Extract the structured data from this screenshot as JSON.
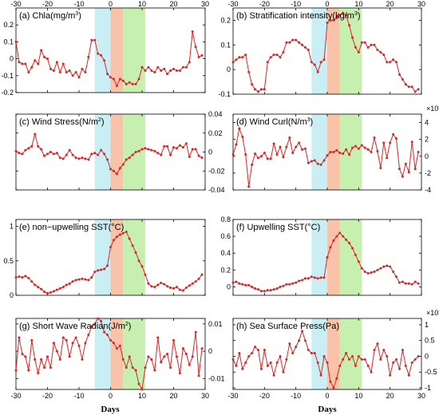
{
  "figure": {
    "xlabel_left": "Days",
    "xlabel_right": "Days",
    "x_ticks": [
      "-30",
      "-20",
      "-10",
      "0",
      "10",
      "20",
      "30"
    ],
    "line_color": "#d62728",
    "shade_colors": [
      "#c9eef4",
      "#f8c3a8",
      "#c7efb0"
    ]
  },
  "chart_data": [
    {
      "type": "line",
      "title_main": "(a) Chla(mg/m",
      "title_sup": "3",
      "title_end": ")",
      "xlim": [
        -30,
        30
      ],
      "ylim": [
        -0.2,
        0.3
      ],
      "yticks": [
        -0.2,
        -0.1,
        0,
        0.1,
        0.2
      ],
      "ytick_labels": [
        "-0.2",
        "-0.1",
        "0",
        "0.1",
        "0.2"
      ],
      "yaxis_side": "left",
      "x_top_labels": true,
      "shaded_intervals": [
        [
          -5,
          0
        ],
        [
          0,
          4
        ],
        [
          4,
          11
        ]
      ],
      "x": [
        -30,
        -29,
        -28,
        -27,
        -26,
        -25,
        -24,
        -23,
        -22,
        -21,
        -20,
        -19,
        -18,
        -17,
        -16,
        -15,
        -14,
        -13,
        -12,
        -11,
        -10,
        -9,
        -8,
        -7,
        -6,
        -5,
        -4,
        -3,
        -2,
        -1,
        0,
        1,
        2,
        3,
        4,
        5,
        6,
        7,
        8,
        9,
        10,
        11,
        12,
        13,
        14,
        15,
        16,
        17,
        18,
        19,
        20,
        21,
        22,
        23,
        24,
        25,
        26,
        27,
        28,
        29
      ],
      "values": [
        0.1,
        -0.02,
        -0.03,
        -0.03,
        -0.08,
        -0.05,
        -0.01,
        -0.03,
        0.05,
        0.01,
        0,
        -0.06,
        -0.07,
        -0.02,
        -0.08,
        -0.03,
        -0.08,
        -0.07,
        -0.1,
        -0.08,
        -0.11,
        -0.06,
        -0.08,
        0.01,
        0.11,
        0.11,
        0.03,
        0.02,
        -0.01,
        -0.09,
        -0.11,
        -0.12,
        -0.16,
        -0.12,
        -0.13,
        -0.15,
        -0.14,
        -0.15,
        -0.15,
        -0.12,
        -0.05,
        -0.07,
        -0.05,
        -0.07,
        -0.08,
        -0.05,
        -0.07,
        -0.06,
        -0.09,
        -0.07,
        -0.06,
        -0.07,
        -0.07,
        -0.05,
        -0.05,
        -0.02,
        0.16,
        0.07,
        0.01,
        0.02
      ]
    },
    {
      "type": "line",
      "title_main": "(b) Stratification intensity(kg/m",
      "title_sup": "3",
      "title_end": ")",
      "xlim": [
        -30,
        30
      ],
      "ylim": [
        -0.1,
        0.25
      ],
      "yticks": [
        -0.1,
        0,
        0.1,
        0.2
      ],
      "ytick_labels": [
        "-0.1",
        "0",
        "0.1",
        "0.2"
      ],
      "yaxis_side": "left",
      "x_top_labels": true,
      "shaded_intervals": [
        [
          -5,
          0
        ],
        [
          0,
          4
        ],
        [
          4,
          11
        ]
      ],
      "x": [
        -30,
        -29,
        -28,
        -27,
        -26,
        -25,
        -24,
        -23,
        -22,
        -21,
        -20,
        -19,
        -18,
        -17,
        -16,
        -15,
        -14,
        -13,
        -12,
        -11,
        -10,
        -9,
        -8,
        -7,
        -6,
        -5,
        -4,
        -3,
        -2,
        -1,
        0,
        1,
        2,
        3,
        4,
        5,
        6,
        7,
        8,
        9,
        10,
        11,
        12,
        13,
        14,
        15,
        16,
        17,
        18,
        19,
        20,
        21,
        22,
        23,
        24,
        25,
        26,
        27,
        28,
        29
      ],
      "values": [
        0.03,
        0.04,
        0.05,
        0.05,
        0.06,
        -0.01,
        -0.06,
        -0.08,
        -0.09,
        -0.08,
        -0.08,
        0.03,
        0.05,
        0.06,
        0.06,
        0.05,
        0.07,
        0.11,
        0.11,
        0.12,
        0.12,
        0.11,
        0.1,
        0.09,
        0.08,
        0.03,
        0.02,
        -0.01,
        0.03,
        0.04,
        0.19,
        0.2,
        0.2,
        0.21,
        0.22,
        0.23,
        0.22,
        0.18,
        0.13,
        0.09,
        0.07,
        0.11,
        0.11,
        0.09,
        0.1,
        0.1,
        0.08,
        0.07,
        0.06,
        0.03,
        0.03,
        0.04,
        0.03,
        -0.02,
        -0.04,
        -0.06,
        -0.07,
        -0.07,
        -0.09,
        -0.08
      ]
    },
    {
      "type": "line",
      "title_main": "(c) Wind Stress(N/m",
      "title_sup": "2",
      "title_end": ")",
      "xlim": [
        -30,
        30
      ],
      "ylim": [
        -0.04,
        0.04
      ],
      "yticks": [
        -0.04,
        -0.02,
        0,
        0.02,
        0.04
      ],
      "ytick_labels": [
        "-0.04",
        "-0.02",
        "0",
        "0.02",
        "0.04"
      ],
      "yaxis_side": "right",
      "x_top_labels": false,
      "shaded_intervals": [
        [
          -5,
          0
        ],
        [
          0,
          4
        ],
        [
          4,
          11
        ]
      ],
      "x": [
        -30,
        -29,
        -28,
        -27,
        -26,
        -25,
        -24,
        -23,
        -22,
        -21,
        -20,
        -19,
        -18,
        -17,
        -16,
        -15,
        -14,
        -13,
        -12,
        -11,
        -10,
        -9,
        -8,
        -7,
        -6,
        -5,
        -4,
        -3,
        -2,
        -1,
        0,
        1,
        2,
        3,
        4,
        5,
        6,
        7,
        8,
        9,
        10,
        11,
        12,
        13,
        14,
        15,
        16,
        17,
        18,
        19,
        20,
        21,
        22,
        23,
        24,
        25,
        26,
        27,
        28,
        29
      ],
      "values": [
        0.001,
        -0.001,
        -0.002,
        0.002,
        0.004,
        0.006,
        0.019,
        0.006,
        0.003,
        -0.004,
        -0.002,
        0,
        -0.002,
        -0.001,
        -0.006,
        -0.007,
        -0.003,
        0.002,
        -0.003,
        -0.006,
        -0.007,
        -0.006,
        -0.007,
        -0.008,
        -0.002,
        -0.001,
        -0.003,
        0.002,
        -0.002,
        -0.008,
        -0.018,
        -0.02,
        -0.023,
        -0.017,
        -0.013,
        -0.008,
        -0.006,
        -0.003,
        0,
        0.001,
        0.003,
        0.004,
        0.003,
        0.002,
        0.001,
        -0.001,
        -0.003,
        0.006,
        0.006,
        -0.003,
        0.005,
        0.004,
        0.007,
        0.005,
        0.009,
        -0.005,
        0.003,
        0.003,
        -0.004,
        -0.006
      ]
    },
    {
      "type": "line",
      "title_main": "(d) Wind Curl(N/m",
      "title_sup": "3",
      "title_end": ")",
      "xlim": [
        -30,
        30
      ],
      "ylim": [
        -4,
        5
      ],
      "yticks": [
        -4,
        -2,
        0,
        2,
        4
      ],
      "ytick_labels": [
        "-4",
        "-2",
        "0",
        "2",
        "4"
      ],
      "yaxis_side": "right",
      "x_top_labels": false,
      "exponent_label": "×10",
      "exponent_value": "-7",
      "shaded_intervals": [
        [
          -5,
          0
        ],
        [
          0,
          4
        ],
        [
          4,
          11
        ]
      ],
      "x": [
        -30,
        -29,
        -28,
        -27,
        -26,
        -25,
        -24,
        -23,
        -22,
        -21,
        -20,
        -19,
        -18,
        -17,
        -16,
        -15,
        -14,
        -13,
        -12,
        -11,
        -10,
        -9,
        -8,
        -7,
        -6,
        -5,
        -4,
        -3,
        -2,
        -1,
        0,
        1,
        2,
        3,
        4,
        5,
        6,
        7,
        8,
        9,
        10,
        11,
        12,
        13,
        14,
        15,
        16,
        17,
        18,
        19,
        20,
        21,
        22,
        23,
        24,
        25,
        26,
        27,
        28,
        29
      ],
      "values": [
        0.2,
        1.4,
        3.3,
        2.3,
        0.2,
        -3.6,
        -1,
        0.3,
        -0.2,
        0,
        0.4,
        -0.3,
        -0.3,
        1.5,
        0.2,
        1.1,
        -0.1,
        1.1,
        2.2,
        0.4,
        1.1,
        1.6,
        0.8,
        0.9,
        -0.8,
        -0.6,
        -0.5,
        -0.9,
        -1,
        -0.5,
        0.1,
        0.5,
        0.5,
        0.7,
        0.4,
        0.3,
        0.8,
        0.2,
        1,
        1.2,
        0.9,
        1.3,
        1,
        0.8,
        0.5,
        2.2,
        0.6,
        -1.4,
        1.6,
        -0.2,
        1.6,
        2.6,
        2.1,
        -1.5,
        -2.4,
        -0.9,
        -1.9,
        1.7,
        -1.5,
        0.5
      ]
    },
    {
      "type": "line",
      "title_main": "(e) non−upwelling SST(°C)",
      "title_sup": "",
      "title_end": "",
      "xlim": [
        -30,
        30
      ],
      "ylim": [
        0,
        1.1
      ],
      "yticks": [
        0,
        0.5,
        1
      ],
      "ytick_labels": [
        "0",
        "0.5",
        "1"
      ],
      "yaxis_side": "left",
      "x_top_labels": false,
      "shaded_intervals": [
        [
          -5,
          0
        ],
        [
          0,
          4
        ],
        [
          4,
          11
        ]
      ],
      "x": [
        -30,
        -29,
        -28,
        -27,
        -26,
        -25,
        -24,
        -23,
        -22,
        -21,
        -20,
        -19,
        -18,
        -17,
        -16,
        -15,
        -14,
        -13,
        -12,
        -11,
        -10,
        -9,
        -8,
        -7,
        -6,
        -5,
        -4,
        -3,
        -2,
        -1,
        0,
        1,
        2,
        3,
        4,
        5,
        6,
        7,
        8,
        9,
        10,
        11,
        12,
        13,
        14,
        15,
        16,
        17,
        18,
        19,
        20,
        21,
        22,
        23,
        24,
        25,
        26,
        27,
        28,
        29
      ],
      "values": [
        0.26,
        0.27,
        0.26,
        0.28,
        0.25,
        0.2,
        0.15,
        0.12,
        0.09,
        0.05,
        0.03,
        0.04,
        0.06,
        0.08,
        0.1,
        0.12,
        0.15,
        0.17,
        0.2,
        0.22,
        0.23,
        0.24,
        0.23,
        0.22,
        0.26,
        0.34,
        0.36,
        0.37,
        0.38,
        0.43,
        0.7,
        0.8,
        0.85,
        0.88,
        0.9,
        0.92,
        0.82,
        0.72,
        0.62,
        0.5,
        0.42,
        0.3,
        0.17,
        0.13,
        0.12,
        0.15,
        0.18,
        0.16,
        0.13,
        0.11,
        0.1,
        0.12,
        0.08,
        0.07,
        0.11,
        0.14,
        0.17,
        0.2,
        0.24,
        0.3
      ]
    },
    {
      "type": "line",
      "title_main": "(f) Upwelling SST(°C)",
      "title_sup": "",
      "title_end": "",
      "xlim": [
        -30,
        30
      ],
      "ylim": [
        -0.1,
        0.8
      ],
      "yticks": [
        0,
        0.2,
        0.4,
        0.6,
        0.8
      ],
      "ytick_labels": [
        "0",
        "0.2",
        "0.4",
        "0.6",
        "0.8"
      ],
      "yaxis_side": "left",
      "x_top_labels": false,
      "shaded_intervals": [
        [
          -5,
          0
        ],
        [
          0,
          4
        ],
        [
          4,
          11
        ]
      ],
      "x": [
        -30,
        -29,
        -28,
        -27,
        -26,
        -25,
        -24,
        -23,
        -22,
        -21,
        -20,
        -19,
        -18,
        -17,
        -16,
        -15,
        -14,
        -13,
        -12,
        -11,
        -10,
        -9,
        -8,
        -7,
        -6,
        -5,
        -4,
        -3,
        -2,
        -1,
        0,
        1,
        2,
        3,
        4,
        5,
        6,
        7,
        8,
        9,
        10,
        11,
        12,
        13,
        14,
        15,
        16,
        17,
        18,
        19,
        20,
        21,
        22,
        23,
        24,
        25,
        26,
        27,
        28,
        29
      ],
      "values": [
        0.05,
        0.06,
        0.04,
        0.03,
        0.02,
        0.02,
        0,
        -0.02,
        -0.03,
        -0.05,
        -0.05,
        -0.04,
        -0.04,
        -0.03,
        -0.02,
        0,
        0.01,
        0.03,
        0.03,
        0.04,
        0.05,
        0.07,
        0.08,
        0.1,
        0.1,
        0.12,
        0.11,
        0.1,
        0.11,
        0.11,
        0.35,
        0.47,
        0.55,
        0.6,
        0.64,
        0.6,
        0.56,
        0.52,
        0.46,
        0.38,
        0.3,
        0.22,
        0.18,
        0.16,
        0.17,
        0.18,
        0.2,
        0.22,
        0.24,
        0.25,
        0.24,
        0.18,
        0.12,
        0.05,
        0.06,
        0.04,
        0.04,
        0.03,
        0.06,
        0.04
      ]
    },
    {
      "type": "line",
      "title_main": "(g) Short Wave Radian(J/m",
      "title_sup": "2",
      "title_end": ")",
      "xlim": [
        -30,
        30
      ],
      "ylim": [
        -0.014,
        0.012
      ],
      "yticks": [
        -0.01,
        0,
        0.01
      ],
      "ytick_labels": [
        "-0.01",
        "0",
        "0.01"
      ],
      "yaxis_side": "right",
      "x_top_labels": false,
      "shaded_intervals": [
        [
          -5,
          0
        ],
        [
          0,
          4
        ],
        [
          4,
          11
        ]
      ],
      "x": [
        -30,
        -29,
        -28,
        -27,
        -26,
        -25,
        -24,
        -23,
        -22,
        -21,
        -20,
        -19,
        -18,
        -17,
        -16,
        -15,
        -14,
        -13,
        -12,
        -11,
        -10,
        -9,
        -8,
        -7,
        -6,
        -5,
        -4,
        -3,
        -2,
        -1,
        0,
        1,
        2,
        3,
        4,
        5,
        6,
        7,
        8,
        9,
        10,
        11,
        12,
        13,
        14,
        15,
        16,
        17,
        18,
        19,
        20,
        21,
        22,
        23,
        24,
        25,
        26,
        27,
        28,
        29
      ],
      "values": [
        -0.007,
        0.005,
        -0.001,
        -0.002,
        -0.007,
        0.004,
        -0.003,
        -0.008,
        -0.003,
        -0.006,
        -0.002,
        -0.006,
        0.003,
        0,
        -0.003,
        0.005,
        0.004,
        -0.002,
        0.003,
        0.005,
        0.002,
        -0.003,
        0.003,
        0.006,
        0.009,
        0.01,
        0.012,
        0.011,
        0.007,
        0.006,
        0.004,
        0.003,
        0.001,
        0.002,
        -0.003,
        -0.006,
        -0.002,
        -0.006,
        -0.007,
        -0.012,
        -0.014,
        -0.006,
        -0.002,
        -0.003,
        -0.007,
        0.005,
        -0.004,
        -0.002,
        -0.001,
        -0.006,
        0.004,
        -0.002,
        -0.008,
        0.001,
        -0.001,
        -0.005,
        -0.002,
        0.007,
        -0.009,
        0.001
      ]
    },
    {
      "type": "line",
      "title_main": "(h) Sea Surface Press(Pa)",
      "title_sup": "",
      "title_end": "",
      "xlim": [
        -30,
        30
      ],
      "ylim": [
        -1.05,
        1.2
      ],
      "yticks": [
        -1,
        -0.5,
        0,
        0.5,
        1
      ],
      "ytick_labels": [
        "-1",
        "-0.5",
        "0",
        "0.5",
        "1"
      ],
      "yaxis_side": "right",
      "x_top_labels": false,
      "exponent_label": "×10",
      "exponent_value": "-5",
      "shaded_intervals": [
        [
          -5,
          0
        ],
        [
          0,
          4
        ],
        [
          4,
          11
        ]
      ],
      "x": [
        -30,
        -29,
        -28,
        -27,
        -26,
        -25,
        -24,
        -23,
        -22,
        -21,
        -20,
        -19,
        -18,
        -17,
        -16,
        -15,
        -14,
        -13,
        -12,
        -11,
        -10,
        -9,
        -8,
        -7,
        -6,
        -5,
        -4,
        -3,
        -2,
        -1,
        0,
        1,
        2,
        3,
        4,
        5,
        6,
        7,
        8,
        9,
        10,
        11,
        12,
        13,
        14,
        15,
        16,
        17,
        18,
        19,
        20,
        21,
        22,
        23,
        24,
        25,
        26,
        27,
        28,
        29
      ],
      "values": [
        -0.1,
        -0.3,
        0.1,
        -0.4,
        -0.2,
        0,
        0.1,
        0.3,
        0.2,
        -0.4,
        0.2,
        -0.3,
        -0.2,
        -0.6,
        -0.2,
        0,
        -0.5,
        -0.1,
        0.4,
        0.1,
        0.3,
        0.5,
        0.8,
        0.5,
        0.2,
        0.1,
        0.1,
        -0.2,
        -0.6,
        0,
        -0.2,
        -0.8,
        -1,
        -0.7,
        -0.3,
        -0.1,
        0.1,
        -0.1,
        0,
        -0.3,
        0,
        -0.1,
        -0.1,
        -0.3,
        -0.5,
        0.2,
        0.4,
        -0.1,
        0.2,
        0,
        -0.6,
        -0.2,
        -0.1,
        -0.4,
        0.2,
        -0.3,
        -0.6,
        -0.2,
        -0.1,
        0
      ]
    }
  ]
}
